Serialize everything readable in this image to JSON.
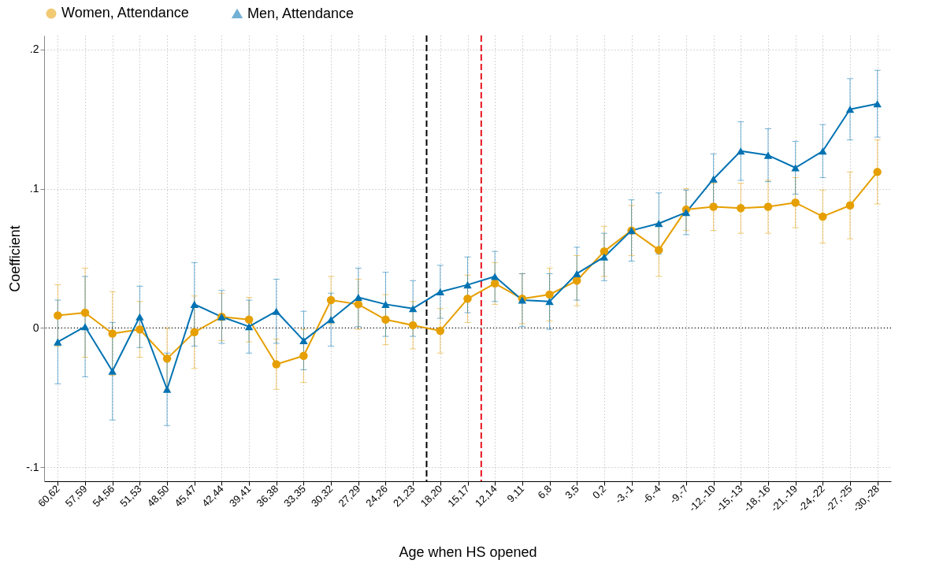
{
  "chart_data": {
    "type": "line",
    "xlabel": "Age when HS opened",
    "ylabel": "Coefficient",
    "categories": [
      "60,62",
      "57,59",
      "54,56",
      "51,53",
      "48,50",
      "45,47",
      "42,44",
      "39,41",
      "36,38",
      "33,35",
      "30,32",
      "27,29",
      "24,26",
      "21,23",
      "18,20",
      "15,17",
      "12,14",
      "9,11",
      "6,8",
      "3,5",
      "0,2",
      "-3,-1",
      "-6,-4",
      "-9,-7",
      "-12,-10",
      "-15,-13",
      "-18,-16",
      "-21,-19",
      "-24,-22",
      "-27,-25",
      "-30,-28"
    ],
    "series": [
      {
        "name": "Women, Attendance",
        "color": "#e69f00",
        "marker": "circle",
        "values": [
          0.009,
          0.011,
          -0.004,
          -0.001,
          -0.022,
          -0.003,
          0.008,
          0.006,
          -0.026,
          -0.02,
          0.02,
          0.017,
          0.006,
          0.002,
          -0.002,
          0.021,
          0.032,
          0.021,
          0.024,
          0.034,
          0.055,
          0.07,
          0.056,
          0.085,
          0.087,
          0.086,
          0.087,
          0.09,
          0.08,
          0.088,
          0.112
        ],
        "errors": [
          0.022,
          0.032,
          0.03,
          0.02,
          0.022,
          0.026,
          0.017,
          0.016,
          0.018,
          0.019,
          0.017,
          0.018,
          0.018,
          0.017,
          0.016,
          0.017,
          0.015,
          0.018,
          0.019,
          0.018,
          0.018,
          0.018,
          0.019,
          0.015,
          0.017,
          0.018,
          0.019,
          0.018,
          0.019,
          0.024,
          0.023
        ]
      },
      {
        "name": "Men, Attendance",
        "color": "#0072b2",
        "marker": "triangle",
        "values": [
          -0.01,
          0.001,
          -0.031,
          0.008,
          -0.044,
          0.017,
          0.008,
          0.001,
          0.012,
          -0.009,
          0.006,
          0.022,
          0.017,
          0.014,
          0.026,
          0.031,
          0.037,
          0.02,
          0.019,
          0.039,
          0.051,
          0.07,
          0.075,
          0.083,
          0.107,
          0.127,
          0.124,
          0.115,
          0.127,
          0.157,
          0.161
        ],
        "errors": [
          0.03,
          0.036,
          0.035,
          0.022,
          0.026,
          0.03,
          0.019,
          0.019,
          0.023,
          0.021,
          0.019,
          0.021,
          0.023,
          0.02,
          0.019,
          0.02,
          0.018,
          0.019,
          0.02,
          0.019,
          0.017,
          0.022,
          0.022,
          0.016,
          0.018,
          0.021,
          0.019,
          0.019,
          0.019,
          0.022,
          0.024
        ]
      }
    ],
    "ylim": [
      -0.11,
      0.21
    ],
    "yticks": [
      {
        "value": -0.1,
        "label": "-.1"
      },
      {
        "value": 0,
        "label": "0"
      },
      {
        "value": 0.1,
        "label": ".1"
      },
      {
        "value": 0.2,
        "label": ".2"
      }
    ],
    "ref_lines": [
      {
        "axis": "y",
        "value": 0,
        "color": "#000000",
        "line_style": "dotted"
      },
      {
        "axis": "x",
        "value": "18,20",
        "color": "#000000",
        "line_style": "dashed"
      },
      {
        "axis": "x",
        "value": "12,14",
        "color": "#e8141c",
        "line_style": "dashed"
      }
    ],
    "grid": true,
    "legend": "top",
    "line_style": "solid"
  }
}
